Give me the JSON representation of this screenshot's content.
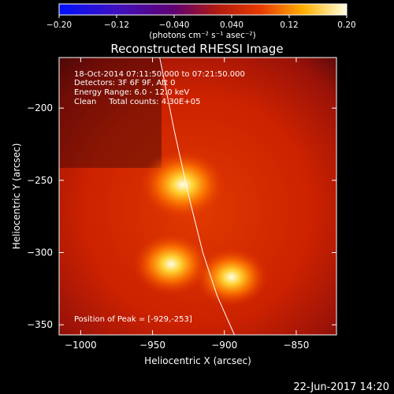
{
  "chart_data": {
    "type": "heatmap",
    "title": "Reconstructed RHESSI Image",
    "xlabel": "Heliocentric X (arcsec)",
    "ylabel": "Heliocentric Y (arcsec)",
    "xlim": [
      -1015,
      -822
    ],
    "ylim": [
      -357,
      -165
    ],
    "x_ticks": [
      -1000,
      -950,
      -900,
      -850
    ],
    "x_tick_labels": [
      "−1000",
      "−950",
      "−900",
      "−850"
    ],
    "y_ticks": [
      -200,
      -250,
      -300,
      -350
    ],
    "y_tick_labels": [
      "−200",
      "−250",
      "−300",
      "−350"
    ],
    "colorbar": {
      "range": [
        -0.2,
        0.2
      ],
      "ticks": [
        -0.2,
        -0.12,
        -0.04,
        0.04,
        0.12,
        0.2
      ],
      "tick_labels": [
        "−0.20",
        "−0.12",
        "−0.040",
        "0.040",
        "0.12",
        "0.20"
      ],
      "unit_label": "(photons cm⁻² s⁻¹ asec⁻²)"
    },
    "info_lines": [
      "18-Oct-2014 07:11:50.000 to 07:21:50.000",
      "Detectors: 3F 6F 9F, Att 0",
      "Energy Range: 6.0 - 12.0 keV",
      "Clean     Total counts: 4.30E+05"
    ],
    "peak_label": "Position of Peak = [-929,-253]",
    "sources": [
      {
        "x": -929,
        "y": -253,
        "peak": 0.2
      },
      {
        "x": -937,
        "y": -308,
        "peak": 0.165
      },
      {
        "x": -895,
        "y": -317,
        "peak": 0.15
      }
    ],
    "background_level": 0.075,
    "limb_curve": [
      [
        -945,
        -165
      ],
      [
        -935,
        -215
      ],
      [
        -925,
        -260
      ],
      [
        -915,
        -300
      ],
      [
        -905,
        -330
      ],
      [
        -893,
        -357
      ]
    ]
  },
  "timestamp": "22-Jun-2017 14:20"
}
